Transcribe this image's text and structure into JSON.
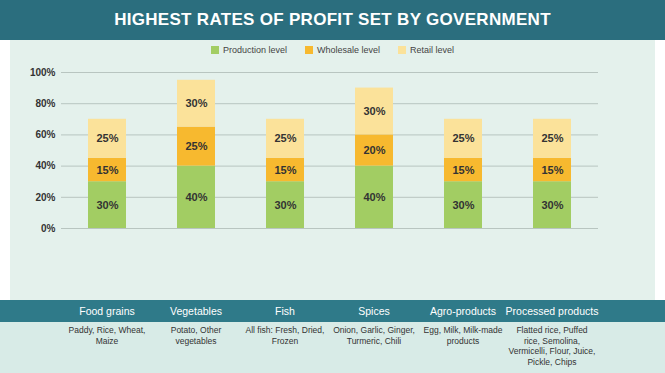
{
  "chart_data": {
    "type": "bar",
    "title": "HIGHEST RATES OF PROFIT SET BY GOVERNMENT",
    "categories": [
      "Food grains",
      "Vegetables",
      "Fish",
      "Spices",
      "Agro-products",
      "Processed products"
    ],
    "annotations": [
      "Paddy, Rice, Wheat, Maize",
      "Potato, Other vegetables",
      "All fish: Fresh, Dried, Frozen",
      "Onion, Garlic, Ginger, Turmeric, Chili",
      "Egg, Milk, Milk-made products",
      "Flatted rice, Puffed rice, Semolina, Vermicelli, Flour, Juice, Pickle, Chips"
    ],
    "series": [
      {
        "name": "Production level",
        "color": "#a2cd63",
        "values": [
          30,
          40,
          30,
          40,
          30,
          30
        ],
        "value_labels": [
          "30%",
          "40%",
          "30%",
          "40%",
          "30%",
          "30%"
        ]
      },
      {
        "name": "Wholesale level",
        "color": "#f7b92f",
        "values": [
          15,
          25,
          15,
          20,
          15,
          15
        ],
        "value_labels": [
          "15%",
          "25%",
          "15%",
          "20%",
          "15%",
          "15%"
        ]
      },
      {
        "name": "Retail level",
        "color": "#fbe29a",
        "values": [
          25,
          30,
          25,
          30,
          25,
          25
        ],
        "value_labels": [
          "25%",
          "30%",
          "25%",
          "30%",
          "25%",
          "25%"
        ]
      }
    ],
    "ylim": [
      0,
      100
    ],
    "yticks": [
      {
        "value": 0,
        "label": "0%"
      },
      {
        "value": 20,
        "label": "20%"
      },
      {
        "value": 40,
        "label": "40%"
      },
      {
        "value": 60,
        "label": "60%"
      },
      {
        "value": 80,
        "label": "80%"
      },
      {
        "value": 100,
        "label": "100%"
      }
    ],
    "grid": true,
    "stacked": true,
    "data_labels": true,
    "legend": "top"
  }
}
